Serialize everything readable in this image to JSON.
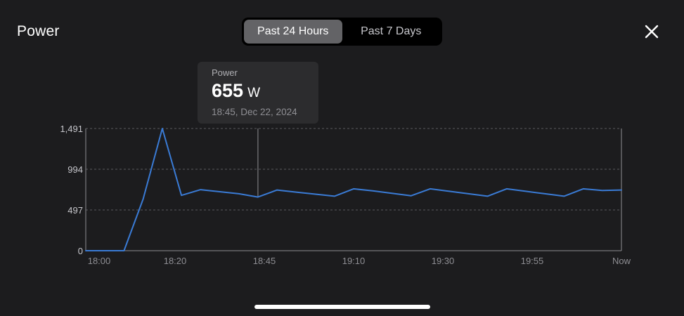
{
  "header": {
    "title": "Power",
    "tabs": [
      {
        "label": "Past 24 Hours",
        "active": true
      },
      {
        "label": "Past 7 Days",
        "active": false
      }
    ],
    "close_icon": "close-icon"
  },
  "tooltip": {
    "label": "Power",
    "value": "655",
    "unit": "W",
    "time": "18:45, Dec 22, 2024"
  },
  "colors": {
    "background": "#1c1c1e",
    "line": "#3a7bd5",
    "grid": "#5a5a5e",
    "axis": "#8e8e93"
  },
  "chart_data": {
    "type": "line",
    "title": "",
    "xlabel": "",
    "ylabel": "",
    "y_ticks": [
      "0",
      "497",
      "994",
      "1,491"
    ],
    "ylim": [
      0,
      1491
    ],
    "x_ticks": [
      "18:00",
      "18:20",
      "18:45",
      "19:10",
      "19:30",
      "19:55",
      "Now"
    ],
    "grid": true,
    "series": [
      {
        "values": [
          [
            0,
            0
          ],
          [
            5,
            0
          ],
          [
            10,
            0
          ],
          [
            15,
            630
          ],
          [
            20,
            1491
          ],
          [
            25,
            675
          ],
          [
            30,
            745
          ],
          [
            35,
            720
          ],
          [
            40,
            695
          ],
          [
            45,
            655
          ],
          [
            50,
            740
          ],
          [
            55,
            715
          ],
          [
            60,
            690
          ],
          [
            65,
            665
          ],
          [
            70,
            755
          ],
          [
            75,
            730
          ],
          [
            80,
            700
          ],
          [
            85,
            670
          ],
          [
            90,
            755
          ],
          [
            95,
            725
          ],
          [
            100,
            695
          ],
          [
            105,
            665
          ],
          [
            110,
            755
          ],
          [
            115,
            725
          ],
          [
            120,
            695
          ],
          [
            125,
            665
          ],
          [
            130,
            755
          ],
          [
            135,
            735
          ],
          [
            140,
            740
          ]
        ]
      }
    ],
    "selected": {
      "x": 45,
      "y": 655
    }
  }
}
